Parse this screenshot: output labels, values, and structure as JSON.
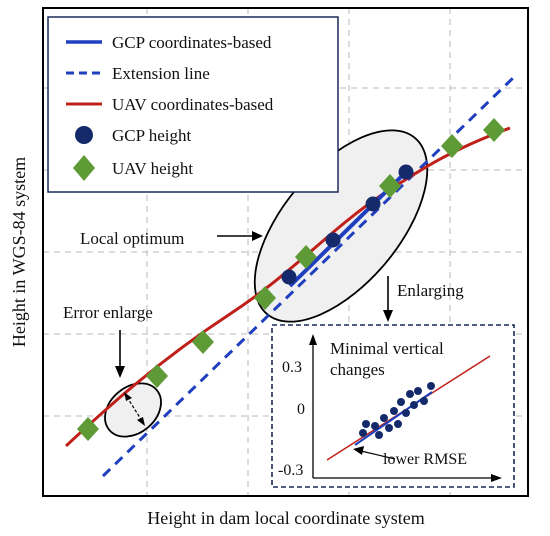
{
  "axes": {
    "xlabel": "Height in dam local coordinate system",
    "ylabel": "Height in WGS-84 system"
  },
  "legend": {
    "items": [
      {
        "label": "GCP coordinates-based",
        "kind": "solid-line",
        "color": "#1f3fbf"
      },
      {
        "label": "Extension line",
        "kind": "dashed-line",
        "color": "#1f3fbf"
      },
      {
        "label": "UAV coordinates-based",
        "kind": "solid-line",
        "color": "#c0201a"
      },
      {
        "label": "GCP height",
        "kind": "circle",
        "color": "#152a6b"
      },
      {
        "label": "UAV height",
        "kind": "diamond",
        "color": "#5e9a35"
      }
    ]
  },
  "annotations": {
    "local_optimum": "Local optimum",
    "error_enlarge": "Error enlarge",
    "enlarging": "Enlarging"
  },
  "inset": {
    "title_line1": "Minimal vertical",
    "title_line2": "changes",
    "tick_top": "0.3",
    "tick_mid": "0",
    "tick_bottom": "-0.3",
    "note": "lower RMSE"
  },
  "colors": {
    "gcp_line": "#1f3fbf",
    "uav_line": "#c0201a",
    "gcp_point": "#152a6b",
    "uav_point": "#5e9a35",
    "frame": "#000000",
    "inset_frame": "#1a2a5a",
    "ellipse_fill": "#f0f0f0"
  }
}
